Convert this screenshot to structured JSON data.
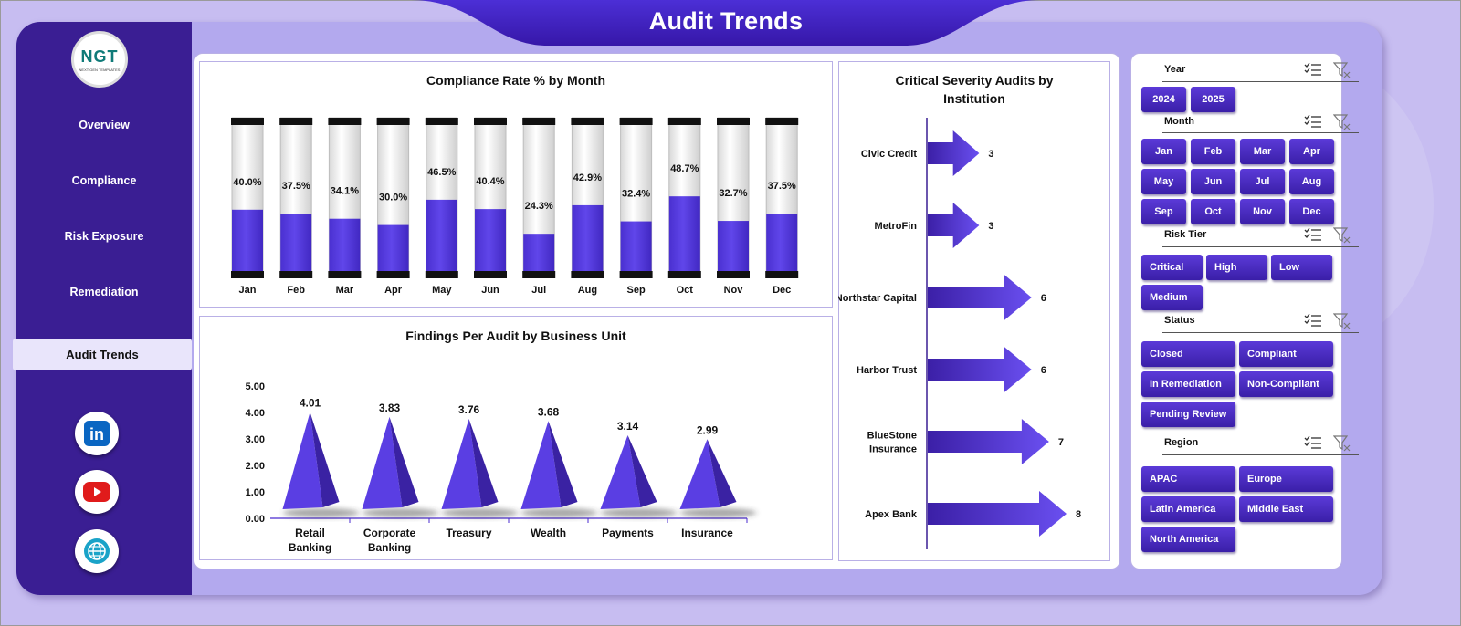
{
  "page_title": "Audit Trends",
  "logo": {
    "text": "NGT",
    "subtext": "NEXT GEN TEMPLATES"
  },
  "nav": {
    "items": [
      "Overview",
      "Compliance",
      "Risk Exposure",
      "Remediation"
    ],
    "active": "Audit Trends"
  },
  "social": {
    "icons": [
      "linkedin-icon",
      "youtube-icon",
      "website-globe-icon"
    ],
    "linkedin_label": "in"
  },
  "colors": {
    "primary": "#3a1e93",
    "bar": "#5a3ee3",
    "accent": "#4a2bd0",
    "background": "#c3b9f0"
  },
  "charts": [
    {
      "chart_data": {
        "type": "bar",
        "title": "Compliance Rate % by Month",
        "categories": [
          "Jan",
          "Feb",
          "Mar",
          "Apr",
          "May",
          "Jun",
          "Jul",
          "Aug",
          "Sep",
          "Oct",
          "Nov",
          "Dec"
        ],
        "values": [
          40.0,
          37.5,
          34.1,
          30.0,
          46.5,
          40.4,
          24.3,
          42.9,
          32.4,
          48.7,
          32.7,
          37.5
        ],
        "labels": [
          "40.0%",
          "37.5%",
          "34.1%",
          "30.0%",
          "46.5%",
          "40.4%",
          "24.3%",
          "42.9%",
          "32.4%",
          "48.7%",
          "32.7%",
          "37.5%"
        ],
        "ylim": [
          0,
          100
        ],
        "style": "cylinder"
      }
    },
    {
      "chart_data": {
        "type": "bar",
        "title": "Findings Per Audit by Business Unit",
        "categories": [
          [
            "Retail",
            "Banking"
          ],
          [
            "Corporate",
            "Banking"
          ],
          [
            "Treasury"
          ],
          [
            "Wealth"
          ],
          [
            "Payments"
          ],
          [
            "Insurance"
          ]
        ],
        "values": [
          4.01,
          3.83,
          3.76,
          3.68,
          3.14,
          2.99
        ],
        "labels": [
          "4.01",
          "3.83",
          "3.76",
          "3.68",
          "3.14",
          "2.99"
        ],
        "yticks": [
          "0.00",
          "1.00",
          "2.00",
          "3.00",
          "4.00",
          "5.00"
        ],
        "ylim": [
          0,
          5
        ],
        "style": "pyramid"
      }
    },
    {
      "chart_data": {
        "type": "bar",
        "orientation": "horizontal",
        "title": [
          "Critical Severity Audits by",
          "Institution"
        ],
        "categories": [
          [
            "Civic Credit"
          ],
          [
            "MetroFin"
          ],
          [
            "Northstar Capital"
          ],
          [
            "Harbor Trust"
          ],
          [
            "BlueStone",
            "Insurance"
          ],
          [
            "Apex Bank"
          ]
        ],
        "values": [
          3,
          3,
          6,
          6,
          7,
          8
        ],
        "labels": [
          "3",
          "3",
          "6",
          "6",
          "7",
          "8"
        ],
        "xlim": [
          0,
          8
        ],
        "style": "arrow"
      }
    }
  ],
  "slicers": {
    "year": {
      "label": "Year",
      "options": [
        "2024",
        "2025"
      ]
    },
    "month": {
      "label": "Month",
      "options": [
        "Jan",
        "Feb",
        "Mar",
        "Apr",
        "May",
        "Jun",
        "Jul",
        "Aug",
        "Sep",
        "Oct",
        "Nov",
        "Dec"
      ]
    },
    "risk_tier": {
      "label": "Risk Tier",
      "options": [
        "Critical",
        "High",
        "Low",
        "Medium"
      ]
    },
    "status": {
      "label": "Status",
      "options": [
        "Closed",
        "Compliant",
        "In Remediation",
        "Non-Compliant",
        "Pending Review"
      ]
    },
    "region": {
      "label": "Region",
      "options": [
        "APAC",
        "Europe",
        "Latin America",
        "Middle East",
        "North America"
      ]
    }
  }
}
